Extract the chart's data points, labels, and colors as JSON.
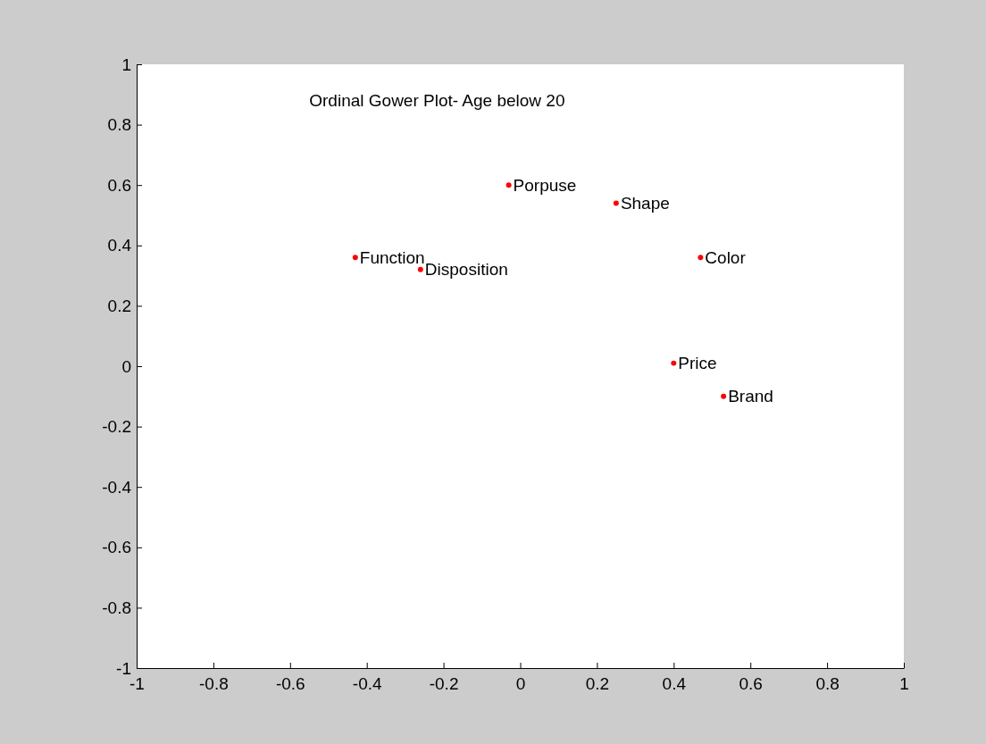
{
  "chart_data": {
    "type": "scatter",
    "title": "Ordinal Gower Plot- Age below 20",
    "x": [
      -0.03,
      0.25,
      -0.43,
      -0.26,
      0.47,
      0.4,
      0.53
    ],
    "values": [
      0.6,
      0.54,
      0.36,
      0.32,
      0.36,
      0.01,
      -0.1
    ],
    "color": "#ff0000",
    "marker": "circle",
    "annotations": [
      {
        "text": "Porpuse",
        "x": -0.03,
        "y": 0.6
      },
      {
        "text": "Shape",
        "x": 0.25,
        "y": 0.54
      },
      {
        "text": "Function",
        "x": -0.43,
        "y": 0.36
      },
      {
        "text": "Disposition",
        "x": -0.26,
        "y": 0.32
      },
      {
        "text": "Color",
        "x": 0.47,
        "y": 0.36
      },
      {
        "text": "Price",
        "x": 0.4,
        "y": 0.01
      },
      {
        "text": "Brand",
        "x": 0.53,
        "y": -0.1
      }
    ],
    "xlim": [
      -1,
      1
    ],
    "xticks": [
      -1,
      -0.8,
      -0.6,
      -0.4,
      -0.2,
      0,
      0.2,
      0.4,
      0.6,
      0.8,
      1
    ],
    "ylim": [
      -1,
      1
    ],
    "yticks": [
      -1,
      -0.8,
      -0.6,
      -0.4,
      -0.2,
      0,
      0.2,
      0.4,
      0.6,
      0.8,
      1
    ]
  }
}
